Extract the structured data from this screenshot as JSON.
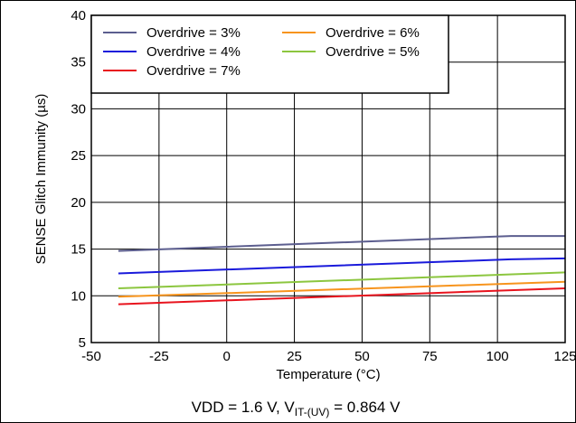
{
  "chart_data": {
    "type": "line",
    "title": "",
    "xlabel": "Temperature (°C)",
    "ylabel": "SENSE Glitch Immunity (µs)",
    "footer": {
      "prefix": "VDD = 1.6 V, V",
      "subscript": "IT-(UV)",
      "suffix": " = 0.864 V"
    },
    "xlim": [
      -50,
      125
    ],
    "ylim": [
      5,
      40
    ],
    "x_ticks": [
      -50,
      -25,
      0,
      25,
      50,
      75,
      100,
      125
    ],
    "y_ticks": [
      5,
      10,
      15,
      20,
      25,
      30,
      35,
      40
    ],
    "grid": true,
    "legend_position": "top-left",
    "series": [
      {
        "name": "Overdrive = 3%",
        "color": "#5c5e8f",
        "x": [
          -40,
          105,
          125
        ],
        "y": [
          14.8,
          16.4,
          16.4
        ]
      },
      {
        "name": "Overdrive = 4%",
        "color": "#1a1adb",
        "x": [
          -40,
          105,
          125
        ],
        "y": [
          12.4,
          13.9,
          14.0
        ]
      },
      {
        "name": "Overdrive = 5%",
        "color": "#8cc63f",
        "x": [
          -40,
          125
        ],
        "y": [
          10.8,
          12.5
        ]
      },
      {
        "name": "Overdrive = 6%",
        "color": "#f7941d",
        "x": [
          -40,
          125
        ],
        "y": [
          9.9,
          11.5
        ]
      },
      {
        "name": "Overdrive = 7%",
        "color": "#e8141e",
        "x": [
          -40,
          125
        ],
        "y": [
          9.1,
          10.8
        ]
      }
    ]
  }
}
